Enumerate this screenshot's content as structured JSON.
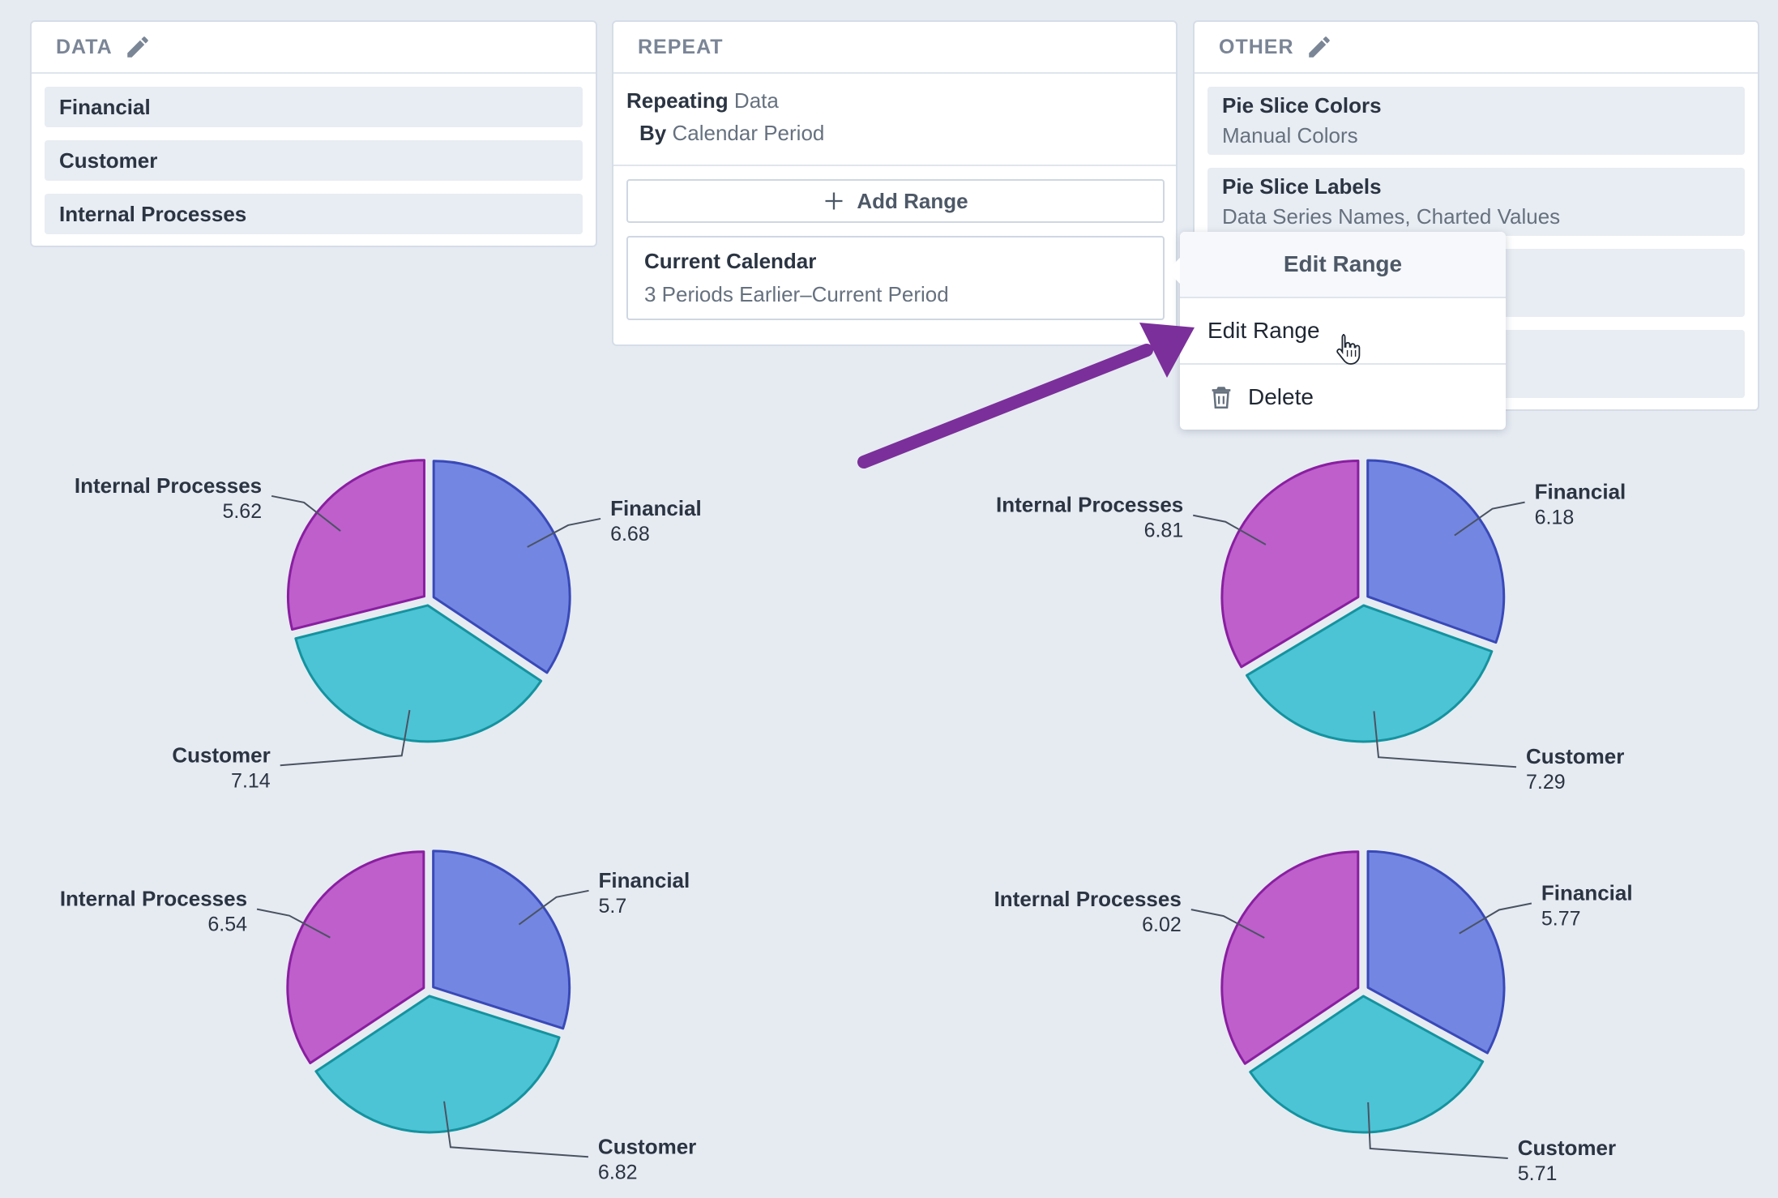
{
  "data_panel": {
    "title": "DATA",
    "items": [
      "Financial",
      "Customer",
      "Internal Processes"
    ]
  },
  "repeat_panel": {
    "title": "REPEAT",
    "repeating_label": "Repeating",
    "repeating_value": "Data",
    "by_label": "By",
    "by_value": "Calendar Period",
    "add_range_label": "Add Range",
    "range_card": {
      "title": "Current Calendar",
      "subtitle": "3 Periods Earlier–Current Period"
    }
  },
  "other_panel": {
    "title": "OTHER",
    "items": [
      {
        "label": "Pie Slice Colors",
        "value": "Manual Colors"
      },
      {
        "label": "Pie Slice Labels",
        "value": "Data Series Names, Charted Values"
      }
    ]
  },
  "context_menu": {
    "header": "Edit Range",
    "items": [
      "Edit Range",
      "Delete"
    ]
  },
  "colors": {
    "financial_fill": "#7386e2",
    "financial_stroke": "#3949b8",
    "customer_fill": "#4dc3d6",
    "customer_stroke": "#14939f",
    "internal_fill": "#be5fcc",
    "internal_stroke": "#8a1ea0",
    "arrow": "#7b2f9a"
  },
  "chart_data": [
    {
      "type": "pie",
      "series": [
        {
          "name": "Financial",
          "value": 6.68
        },
        {
          "name": "Customer",
          "value": 7.14
        },
        {
          "name": "Internal Processes",
          "value": 5.62
        }
      ]
    },
    {
      "type": "pie",
      "series": [
        {
          "name": "Financial",
          "value": 6.18
        },
        {
          "name": "Customer",
          "value": 7.29
        },
        {
          "name": "Internal Processes",
          "value": 6.81
        }
      ]
    },
    {
      "type": "pie",
      "series": [
        {
          "name": "Financial",
          "value": 5.7
        },
        {
          "name": "Customer",
          "value": 6.82
        },
        {
          "name": "Internal Processes",
          "value": 6.54
        }
      ]
    },
    {
      "type": "pie",
      "series": [
        {
          "name": "Financial",
          "value": 5.77
        },
        {
          "name": "Customer",
          "value": 5.71
        },
        {
          "name": "Internal Processes",
          "value": 6.02
        }
      ]
    }
  ]
}
